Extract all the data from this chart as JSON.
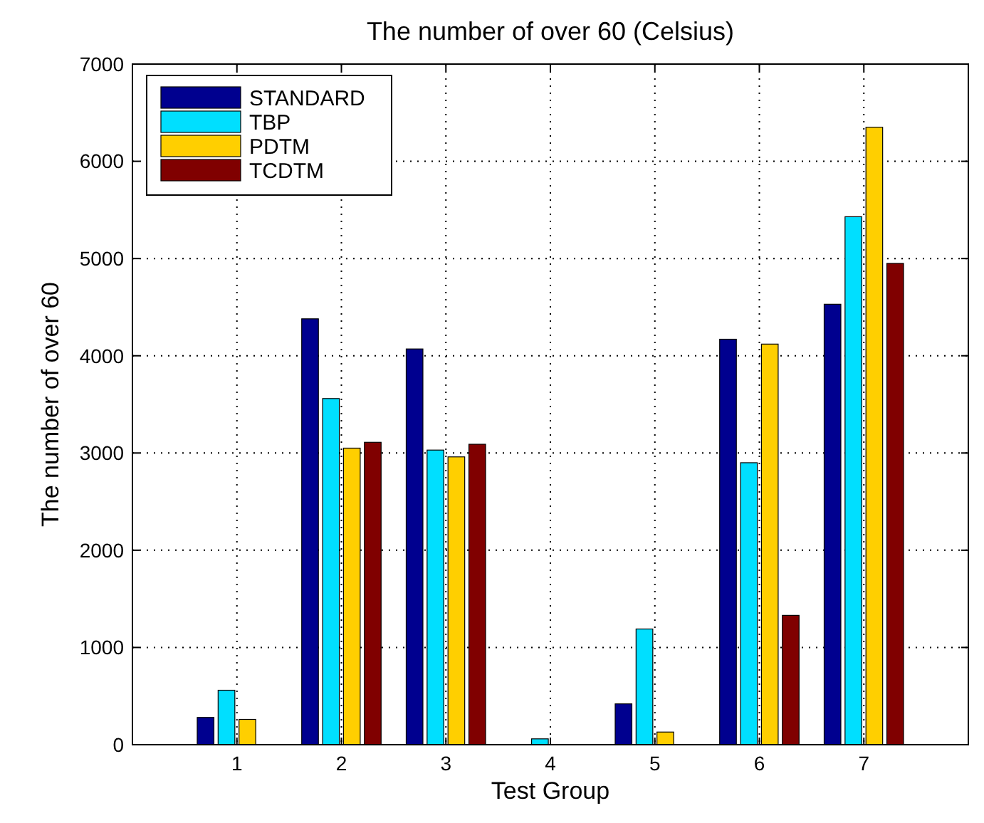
{
  "chart_data": {
    "type": "bar",
    "title": "The number of over 60 (Celsius)",
    "xlabel": "Test Group",
    "ylabel": "The number of over 60",
    "categories": [
      "1",
      "2",
      "3",
      "4",
      "5",
      "6",
      "7"
    ],
    "series": [
      {
        "name": "STANDARD",
        "color": "#00008f",
        "values": [
          280,
          4380,
          4070,
          0,
          420,
          4170,
          4530
        ]
      },
      {
        "name": "TBP",
        "color": "#00dfff",
        "values": [
          560,
          3560,
          3030,
          60,
          1190,
          2900,
          5430
        ]
      },
      {
        "name": "PDTM",
        "color": "#ffcf00",
        "values": [
          260,
          3050,
          2960,
          0,
          130,
          4120,
          6350
        ]
      },
      {
        "name": "TCDTM",
        "color": "#800000",
        "values": [
          0,
          3110,
          3090,
          0,
          0,
          1330,
          4950
        ]
      }
    ],
    "ylim": [
      0,
      7000
    ],
    "yticks": [
      0,
      1000,
      2000,
      3000,
      4000,
      5000,
      6000,
      7000
    ],
    "grid": true,
    "legend": "top left"
  }
}
